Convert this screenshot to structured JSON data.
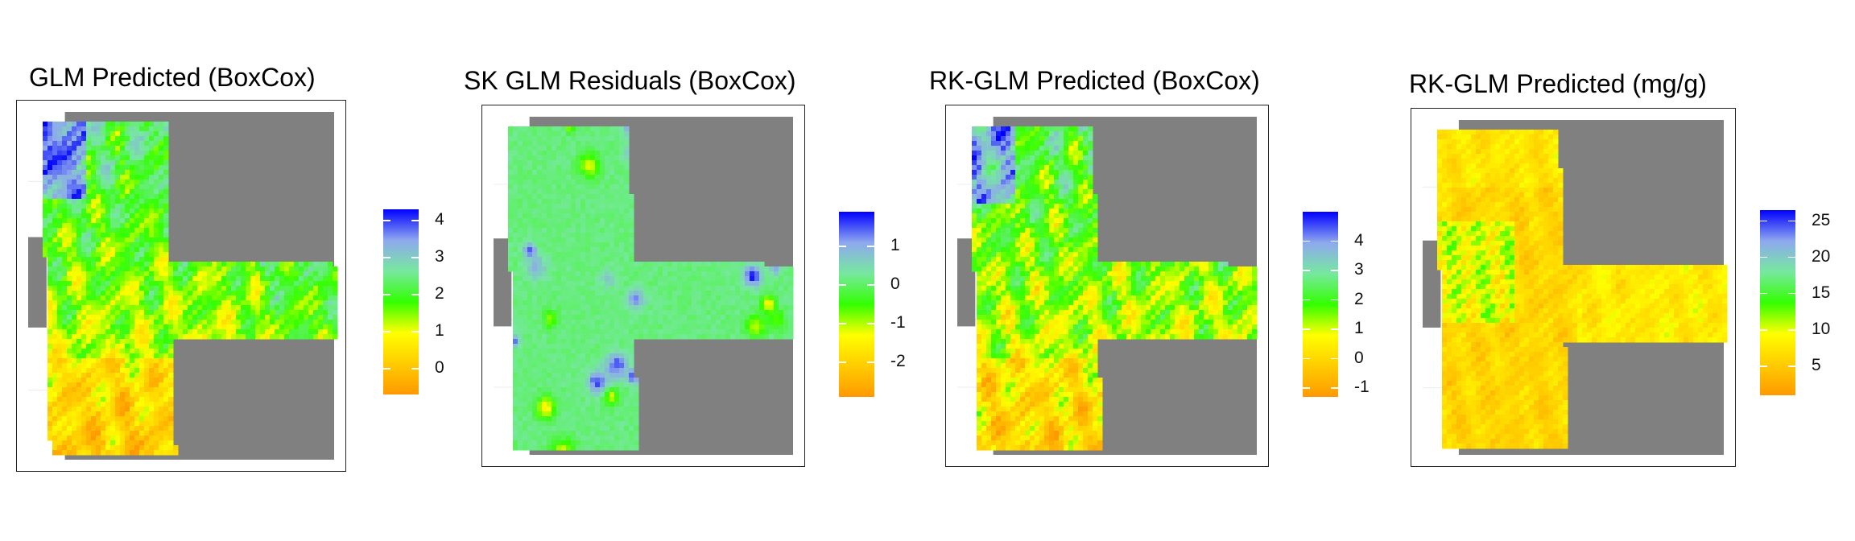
{
  "colors": {
    "background": "#ffffff",
    "frame": "#222222",
    "mask": "#808080",
    "scale": [
      "#ff9900",
      "#ffcc00",
      "#ffff00",
      "#33ff00",
      "#77e8a0",
      "#8ea8ee",
      "#0000ff"
    ]
  },
  "panels": [
    {
      "title": "GLM Predicted (BoxCox)",
      "legend": {
        "ticks": [
          "4",
          "3",
          "2",
          "1",
          "0"
        ],
        "range": [
          -0.7,
          4.3
        ],
        "values": [
          4,
          3,
          2,
          1,
          0
        ]
      },
      "pattern": "glm"
    },
    {
      "title": "SK GLM Residuals (BoxCox)",
      "legend": {
        "ticks": [
          "1",
          "0",
          "-1",
          "-2"
        ],
        "range": [
          -2.9,
          1.9
        ],
        "values": [
          1,
          0,
          -1,
          -2
        ]
      },
      "pattern": "residual"
    },
    {
      "title": "RK-GLM Predicted (BoxCox)",
      "legend": {
        "ticks": [
          "4",
          "3",
          "2",
          "1",
          "0",
          "-1"
        ],
        "range": [
          -1.3,
          5.0
        ],
        "values": [
          4,
          3,
          2,
          1,
          0,
          -1
        ]
      },
      "pattern": "rk"
    },
    {
      "title": "RK-GLM Predicted (mg/g)",
      "legend": {
        "ticks": [
          "25",
          "20",
          "15",
          "10",
          "5"
        ],
        "range": [
          1.0,
          26.5
        ],
        "values": [
          25,
          20,
          15,
          10,
          5
        ]
      },
      "pattern": "mgg"
    }
  ]
}
